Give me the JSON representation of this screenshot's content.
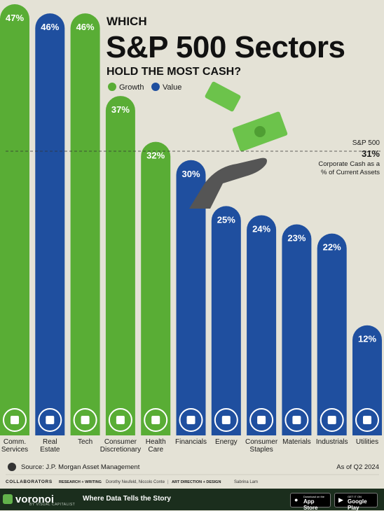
{
  "header": {
    "line1": "WHICH",
    "line2": "S&P 500 Sectors",
    "line3": "HOLD THE MOST CASH?"
  },
  "legend": [
    {
      "label": "Growth",
      "color": "#59ad35"
    },
    {
      "label": "Value",
      "color": "#1f4f9f"
    }
  ],
  "reference": {
    "label": "S&P 500",
    "value_text": "31%",
    "value": 31,
    "desc_line1": "Corporate Cash as a",
    "desc_line2": "% of Current Assets"
  },
  "chart_data": {
    "type": "bar",
    "title": "WHICH S&P 500 Sectors HOLD THE MOST CASH?",
    "unit": "%",
    "ylim": [
      0,
      47
    ],
    "grid": false,
    "legend_position": "top-left",
    "categories": [
      "Comm. Services",
      "Real Estate",
      "Tech",
      "Consumer Discretionary",
      "Health Care",
      "Financials",
      "Energy",
      "Consumer Staples",
      "Materials",
      "Industrials",
      "Utilities"
    ],
    "category_lines": [
      [
        "Comm.",
        "Services"
      ],
      [
        "Real",
        "Estate"
      ],
      [
        "Tech"
      ],
      [
        "Consumer",
        "Discretionary"
      ],
      [
        "Health",
        "Care"
      ],
      [
        "Financials"
      ],
      [
        "Energy"
      ],
      [
        "Consumer",
        "Staples"
      ],
      [
        "Materials"
      ],
      [
        "Industrials"
      ],
      [
        "Utilities"
      ]
    ],
    "values": [
      47,
      46,
      46,
      37,
      32,
      30,
      25,
      24,
      23,
      22,
      12
    ],
    "value_labels": [
      "47%",
      "46%",
      "46%",
      "37%",
      "32%",
      "30%",
      "25%",
      "24%",
      "23%",
      "22%",
      "12%"
    ],
    "groups": [
      "Growth",
      "Value",
      "Growth",
      "Growth",
      "Growth",
      "Value",
      "Value",
      "Value",
      "Value",
      "Value",
      "Value"
    ],
    "icons": [
      "headset-icon",
      "building-icon",
      "monitor-icon",
      "shopping-bag-icon",
      "medical-kit-icon",
      "money-bag-icon",
      "battery-icon",
      "grocery-basket-icon",
      "bricks-icon",
      "factory-icon",
      "utility-tools-icon"
    ],
    "reference_line": {
      "label": "S&P 500",
      "value": 31
    }
  },
  "notes": {
    "source": "Source: J.P. Morgan Asset Management",
    "as_of": "As of Q2 2024"
  },
  "credits": {
    "collaborators": "COLLABORATORS",
    "research_label": "RESEARCH + WRITING",
    "research_names": "Dorothy Neufeld, Niccolo Conte",
    "art_label": "ART DIRECTION + DESIGN",
    "art_names": "Sabrina Lam"
  },
  "footer": {
    "brand": "voronoi",
    "brand_sub": "BY VISUAL CAPITALIST",
    "tagline": "Where Data Tells the Story",
    "appstore_small": "Download on the",
    "appstore_big": "App Store",
    "googleplay_small": "GET IT ON",
    "googleplay_big": "Google Play"
  },
  "colors": {
    "growth": "#59ad35",
    "value": "#1f4f9f",
    "background": "#e4e2d6",
    "footer": "#1b2e1d"
  }
}
